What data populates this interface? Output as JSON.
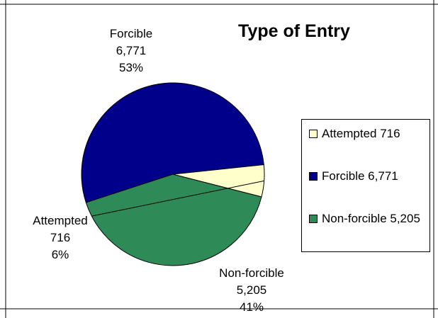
{
  "chart_data": {
    "type": "pie",
    "title": "Type of Entry",
    "legend_position": "right",
    "slices": [
      {
        "name": "Forcible",
        "value": 6771,
        "value_label": "6,771",
        "percent_label": "53%",
        "color": "#00008b"
      },
      {
        "name": "Non-forcible",
        "value": 5205,
        "value_label": "5,205",
        "percent_label": "41%",
        "color": "#2e8b57"
      },
      {
        "name": "Attempted",
        "value": 716,
        "value_label": "716",
        "percent_label": "6%",
        "color": "#ffffcc"
      }
    ],
    "legend": [
      {
        "text": "Attempted 716",
        "color": "#ffffcc"
      },
      {
        "text": "Forcible 6,771",
        "color": "#00008b"
      },
      {
        "text": "Non-forcible 5,205",
        "color": "#2e8b57"
      }
    ]
  }
}
